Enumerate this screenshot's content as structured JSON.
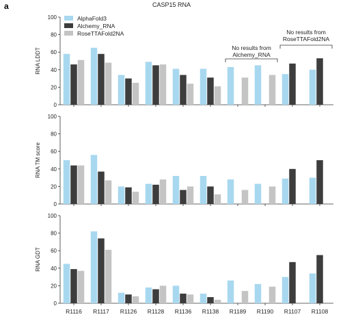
{
  "panel_letter": "a",
  "figure_title": "CASP15 RNA",
  "colors": {
    "AlphaFold3": "#a8d8ef",
    "Alchemy_RNA": "#3d3d3d",
    "RoseTTAFold2NA": "#c4c4c4"
  },
  "chart_data": [
    {
      "type": "bar",
      "title": "CASP15 RNA",
      "ylabel": "RNA LDDT",
      "ylim": [
        0,
        100
      ],
      "yticks": [
        0,
        20,
        40,
        60,
        80,
        100
      ],
      "categories": [
        "R1116",
        "R1117",
        "R1126",
        "R1128",
        "R1136",
        "R1138",
        "R1189",
        "R1190",
        "R1107",
        "R1108"
      ],
      "series": [
        {
          "name": "AlphaFold3",
          "values": [
            58,
            65,
            34,
            49,
            41,
            41,
            43,
            45,
            35,
            40
          ]
        },
        {
          "name": "Alchemy_RNA",
          "values": [
            46,
            58,
            30,
            45,
            34,
            31,
            null,
            null,
            47,
            53
          ]
        },
        {
          "name": "RoseTTAFold2NA",
          "values": [
            51,
            48,
            25,
            46,
            24,
            21,
            31,
            34,
            null,
            null
          ]
        }
      ],
      "legend": "top-left",
      "annotations": [
        {
          "text": "No results from\nAlchemy_RNA",
          "categories": [
            "R1189",
            "R1190"
          ]
        },
        {
          "text": "No results from\nRoseTTAFold2NA",
          "categories": [
            "R1107",
            "R1108"
          ]
        }
      ]
    },
    {
      "type": "bar",
      "ylabel": "RNA TM score",
      "ylim": [
        0,
        100
      ],
      "yticks": [
        0,
        20,
        40,
        60,
        80,
        100
      ],
      "categories": [
        "R1116",
        "R1117",
        "R1126",
        "R1128",
        "R1136",
        "R1138",
        "R1189",
        "R1190",
        "R1107",
        "R1108"
      ],
      "series": [
        {
          "name": "AlphaFold3",
          "values": [
            50,
            56,
            20,
            23,
            32,
            32,
            28,
            23,
            29,
            30
          ]
        },
        {
          "name": "Alchemy_RNA",
          "values": [
            44,
            37,
            19,
            22,
            16,
            20,
            null,
            null,
            40,
            50
          ]
        },
        {
          "name": "RoseTTAFold2NA",
          "values": [
            44,
            27,
            14,
            28,
            20,
            11,
            16,
            20,
            null,
            null
          ]
        }
      ]
    },
    {
      "type": "bar",
      "ylabel": "RNA GDT",
      "ylim": [
        0,
        100
      ],
      "yticks": [
        0,
        20,
        40,
        60,
        80,
        100
      ],
      "categories": [
        "R1116",
        "R1117",
        "R1126",
        "R1128",
        "R1136",
        "R1138",
        "R1189",
        "R1190",
        "R1107",
        "R1108"
      ],
      "series": [
        {
          "name": "AlphaFold3",
          "values": [
            45,
            82,
            12,
            18,
            20,
            11,
            26,
            22,
            30,
            34
          ]
        },
        {
          "name": "Alchemy_RNA",
          "values": [
            39,
            74,
            10,
            16,
            11,
            7,
            null,
            null,
            47,
            55
          ]
        },
        {
          "name": "RoseTTAFold2NA",
          "values": [
            37,
            61,
            8,
            20,
            10,
            4,
            14,
            19,
            null,
            null
          ]
        }
      ]
    }
  ]
}
